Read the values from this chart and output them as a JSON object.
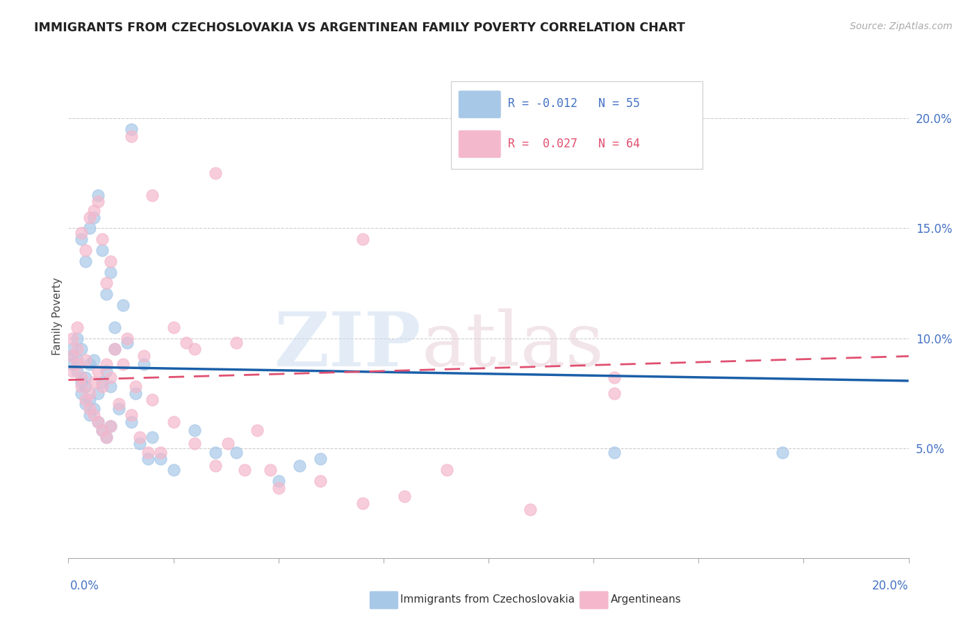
{
  "title": "IMMIGRANTS FROM CZECHOSLOVAKIA VS ARGENTINEAN FAMILY POVERTY CORRELATION CHART",
  "source_text": "Source: ZipAtlas.com",
  "ylabel": "Family Poverty",
  "legend_label1": "Immigrants from Czechoslovakia",
  "legend_label2": "Argentineans",
  "blue_color": "#a8c8e8",
  "pink_color": "#f4b8cc",
  "blue_edge_color": "#a8c8e8",
  "pink_edge_color": "#f4b8cc",
  "blue_line_color": "#1a5fa8",
  "pink_line_color": "#e05070",
  "blue_scatter": {
    "x": [
      0.001,
      0.001,
      0.002,
      0.002,
      0.003,
      0.003,
      0.003,
      0.004,
      0.004,
      0.004,
      0.005,
      0.005,
      0.005,
      0.006,
      0.006,
      0.007,
      0.007,
      0.008,
      0.008,
      0.009,
      0.009,
      0.01,
      0.01,
      0.011,
      0.011,
      0.012,
      0.013,
      0.014,
      0.015,
      0.016,
      0.017,
      0.018,
      0.019,
      0.02,
      0.022,
      0.025,
      0.03,
      0.035,
      0.04,
      0.05,
      0.055,
      0.06,
      0.001,
      0.002,
      0.003,
      0.004,
      0.005,
      0.006,
      0.007,
      0.008,
      0.009,
      0.01,
      0.015,
      0.13,
      0.17
    ],
    "y": [
      0.088,
      0.092,
      0.085,
      0.09,
      0.075,
      0.08,
      0.095,
      0.07,
      0.082,
      0.078,
      0.065,
      0.072,
      0.088,
      0.068,
      0.09,
      0.062,
      0.075,
      0.058,
      0.08,
      0.055,
      0.085,
      0.06,
      0.078,
      0.095,
      0.105,
      0.068,
      0.115,
      0.098,
      0.062,
      0.075,
      0.052,
      0.088,
      0.045,
      0.055,
      0.045,
      0.04,
      0.058,
      0.048,
      0.048,
      0.035,
      0.042,
      0.045,
      0.095,
      0.1,
      0.145,
      0.135,
      0.15,
      0.155,
      0.165,
      0.14,
      0.12,
      0.13,
      0.195,
      0.048,
      0.048
    ]
  },
  "pink_scatter": {
    "x": [
      0.001,
      0.001,
      0.002,
      0.002,
      0.003,
      0.003,
      0.004,
      0.004,
      0.005,
      0.005,
      0.006,
      0.006,
      0.007,
      0.007,
      0.008,
      0.008,
      0.009,
      0.009,
      0.01,
      0.01,
      0.011,
      0.012,
      0.013,
      0.014,
      0.015,
      0.016,
      0.017,
      0.018,
      0.019,
      0.02,
      0.022,
      0.025,
      0.028,
      0.03,
      0.035,
      0.04,
      0.045,
      0.05,
      0.06,
      0.07,
      0.08,
      0.09,
      0.11,
      0.13,
      0.001,
      0.002,
      0.003,
      0.004,
      0.005,
      0.006,
      0.007,
      0.008,
      0.009,
      0.01,
      0.015,
      0.02,
      0.025,
      0.03,
      0.035,
      0.13,
      0.038,
      0.042,
      0.048,
      0.07
    ],
    "y": [
      0.085,
      0.092,
      0.088,
      0.095,
      0.078,
      0.082,
      0.072,
      0.09,
      0.068,
      0.075,
      0.065,
      0.08,
      0.062,
      0.085,
      0.058,
      0.078,
      0.055,
      0.088,
      0.06,
      0.082,
      0.095,
      0.07,
      0.088,
      0.1,
      0.065,
      0.078,
      0.055,
      0.092,
      0.048,
      0.072,
      0.048,
      0.062,
      0.098,
      0.052,
      0.042,
      0.098,
      0.058,
      0.032,
      0.035,
      0.025,
      0.028,
      0.04,
      0.022,
      0.075,
      0.1,
      0.105,
      0.148,
      0.14,
      0.155,
      0.158,
      0.162,
      0.145,
      0.125,
      0.135,
      0.192,
      0.165,
      0.105,
      0.095,
      0.175,
      0.082,
      0.052,
      0.04,
      0.04,
      0.145
    ]
  },
  "xlim": [
    0.0,
    0.2
  ],
  "ylim": [
    0.0,
    0.22
  ],
  "blue_trend": {
    "slope": -0.032,
    "intercept": 0.087
  },
  "pink_trend": {
    "slope": 0.054,
    "intercept": 0.081
  }
}
